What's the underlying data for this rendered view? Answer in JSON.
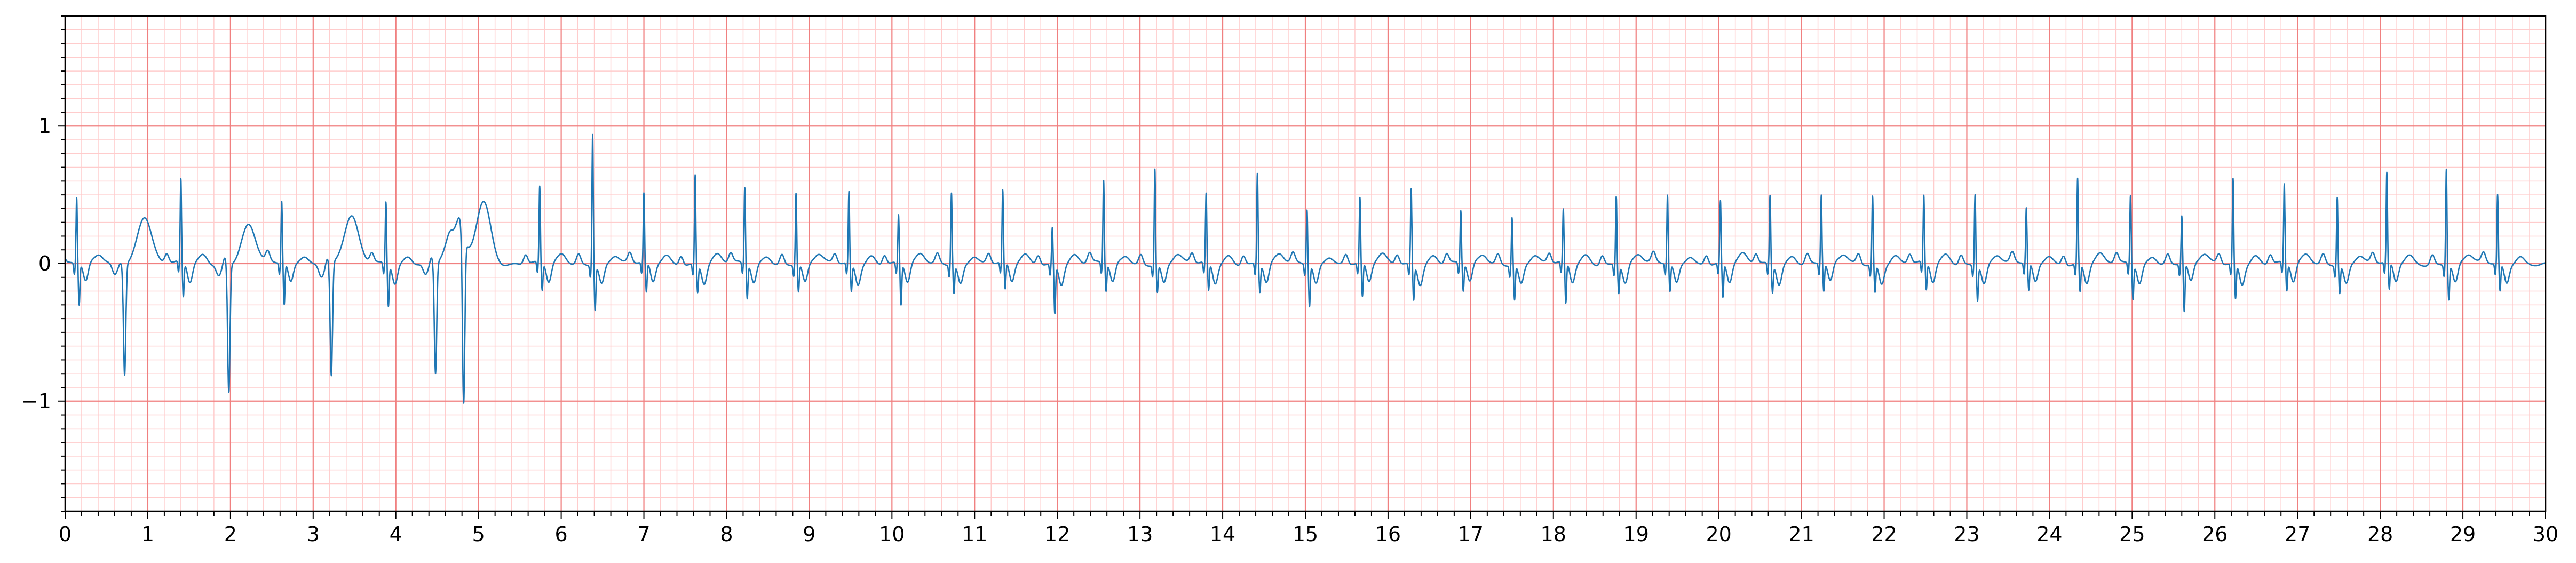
{
  "chart_data": {
    "type": "line",
    "title": "",
    "xlabel": "",
    "ylabel": "",
    "xlim": [
      0,
      30
    ],
    "ylim": [
      -1.8,
      1.8
    ],
    "grid": {
      "major": true,
      "minor": true
    },
    "colors": {
      "major_grid": "#f08080",
      "minor_grid": "#ffcccc",
      "signal": "#1f77b4",
      "axes": "#000000",
      "background": "#ffffff"
    },
    "x_ticks": [
      {
        "value": 0,
        "label": "0"
      },
      {
        "value": 1,
        "label": "1"
      },
      {
        "value": 2,
        "label": "2"
      },
      {
        "value": 3,
        "label": "3"
      },
      {
        "value": 4,
        "label": "4"
      },
      {
        "value": 5,
        "label": "5"
      },
      {
        "value": 6,
        "label": "6"
      },
      {
        "value": 7,
        "label": "7"
      },
      {
        "value": 8,
        "label": "8"
      },
      {
        "value": 9,
        "label": "9"
      },
      {
        "value": 10,
        "label": "10"
      },
      {
        "value": 11,
        "label": "11"
      },
      {
        "value": 12,
        "label": "12"
      },
      {
        "value": 13,
        "label": "13"
      },
      {
        "value": 14,
        "label": "14"
      },
      {
        "value": 15,
        "label": "15"
      },
      {
        "value": 16,
        "label": "16"
      },
      {
        "value": 17,
        "label": "17"
      },
      {
        "value": 18,
        "label": "18"
      },
      {
        "value": 19,
        "label": "19"
      },
      {
        "value": 20,
        "label": "20"
      },
      {
        "value": 21,
        "label": "21"
      },
      {
        "value": 22,
        "label": "22"
      },
      {
        "value": 23,
        "label": "23"
      },
      {
        "value": 24,
        "label": "24"
      },
      {
        "value": 25,
        "label": "25"
      },
      {
        "value": 26,
        "label": "26"
      },
      {
        "value": 27,
        "label": "27"
      },
      {
        "value": 28,
        "label": "28"
      },
      {
        "value": 29,
        "label": "29"
      },
      {
        "value": 30,
        "label": "30"
      }
    ],
    "y_ticks": [
      {
        "value": -1,
        "label": "−1"
      },
      {
        "value": 0,
        "label": "0"
      },
      {
        "value": 1,
        "label": "1"
      }
    ],
    "series": [
      {
        "beats": [
          {
            "t": 0.14,
            "r": 0.48,
            "s": -0.3
          },
          {
            "t": 0.72,
            "r": 0.02,
            "s": -0.8,
            "pvc": 0.35
          },
          {
            "t": 1.4,
            "r": 0.6,
            "s": -0.25
          },
          {
            "t": 1.98,
            "r": 0.05,
            "s": -0.93,
            "pvc": 0.28
          },
          {
            "t": 2.62,
            "r": 0.45,
            "s": -0.3
          },
          {
            "t": 3.22,
            "r": 0.05,
            "s": -0.82,
            "pvc": 0.34
          },
          {
            "t": 3.88,
            "r": 0.45,
            "s": -0.3
          },
          {
            "t": 4.48,
            "r": 0.05,
            "s": -0.8,
            "pvc": 0.33
          },
          {
            "t": 4.82,
            "r": 0.05,
            "s": -1.2,
            "pvc": 0.46
          },
          {
            "t": 5.74,
            "r": 0.55,
            "s": -0.2
          },
          {
            "t": 6.38,
            "r": 0.96,
            "s": -0.32
          },
          {
            "t": 7.0,
            "r": 0.5,
            "s": -0.22
          },
          {
            "t": 7.62,
            "r": 0.65,
            "s": -0.2
          },
          {
            "t": 8.22,
            "r": 0.55,
            "s": -0.25
          },
          {
            "t": 8.84,
            "r": 0.52,
            "s": -0.2
          },
          {
            "t": 9.48,
            "r": 0.52,
            "s": -0.2
          },
          {
            "t": 10.08,
            "r": 0.35,
            "s": -0.3
          },
          {
            "t": 10.72,
            "r": 0.53,
            "s": -0.2
          },
          {
            "t": 11.34,
            "r": 0.52,
            "s": -0.2
          },
          {
            "t": 11.94,
            "r": 0.27,
            "s": -0.35
          },
          {
            "t": 12.56,
            "r": 0.6,
            "s": -0.2
          },
          {
            "t": 13.18,
            "r": 0.7,
            "s": -0.2
          },
          {
            "t": 13.8,
            "r": 0.5,
            "s": -0.2
          },
          {
            "t": 14.42,
            "r": 0.66,
            "s": -0.2
          },
          {
            "t": 15.02,
            "r": 0.4,
            "s": -0.3
          },
          {
            "t": 15.66,
            "r": 0.47,
            "s": -0.25
          },
          {
            "t": 16.28,
            "r": 0.55,
            "s": -0.25
          },
          {
            "t": 16.88,
            "r": 0.38,
            "s": -0.2
          },
          {
            "t": 17.5,
            "r": 0.35,
            "s": -0.25
          },
          {
            "t": 18.12,
            "r": 0.38,
            "s": -0.3
          },
          {
            "t": 18.76,
            "r": 0.5,
            "s": -0.2
          },
          {
            "t": 19.38,
            "r": 0.5,
            "s": -0.2
          },
          {
            "t": 20.02,
            "r": 0.45,
            "s": -0.25
          },
          {
            "t": 20.62,
            "r": 0.5,
            "s": -0.2
          },
          {
            "t": 21.24,
            "r": 0.5,
            "s": -0.2
          },
          {
            "t": 21.86,
            "r": 0.5,
            "s": -0.2
          },
          {
            "t": 22.48,
            "r": 0.48,
            "s": -0.2
          },
          {
            "t": 23.1,
            "r": 0.52,
            "s": -0.25
          },
          {
            "t": 23.72,
            "r": 0.4,
            "s": -0.2
          },
          {
            "t": 24.34,
            "r": 0.62,
            "s": -0.2
          },
          {
            "t": 24.98,
            "r": 0.5,
            "s": -0.25
          },
          {
            "t": 25.6,
            "r": 0.35,
            "s": -0.35
          },
          {
            "t": 26.22,
            "r": 0.62,
            "s": -0.25
          },
          {
            "t": 26.84,
            "r": 0.57,
            "s": -0.2
          },
          {
            "t": 27.48,
            "r": 0.5,
            "s": -0.2
          },
          {
            "t": 28.08,
            "r": 0.65,
            "s": -0.2
          },
          {
            "t": 28.8,
            "r": 0.7,
            "s": -0.25
          },
          {
            "t": 29.42,
            "r": 0.5,
            "s": -0.2
          }
        ]
      }
    ]
  }
}
